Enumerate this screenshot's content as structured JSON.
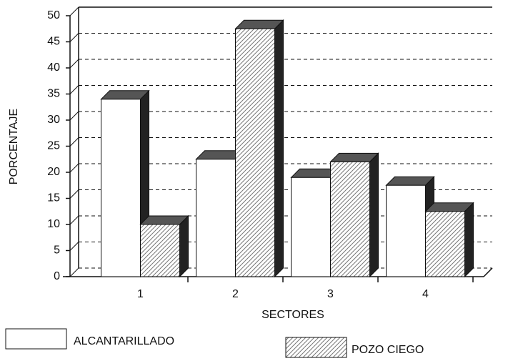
{
  "chart_data": {
    "type": "bar3d",
    "xlabel": "SECTORES",
    "ylabel": "PORCENTAJE",
    "categories": [
      "1",
      "2",
      "3",
      "4"
    ],
    "series": [
      {
        "name": "ALCANTARILLADO",
        "color": "#ffffff",
        "values": [
          34,
          22.5,
          19,
          17.5
        ]
      },
      {
        "name": "POZO CIEGO",
        "color": "#777777",
        "values": [
          10,
          47.5,
          22,
          12.5
        ]
      }
    ],
    "ylim": [
      0,
      50
    ],
    "yticks": [
      0,
      5,
      10,
      15,
      20,
      25,
      30,
      35,
      40,
      45,
      50
    ],
    "grid": true
  }
}
